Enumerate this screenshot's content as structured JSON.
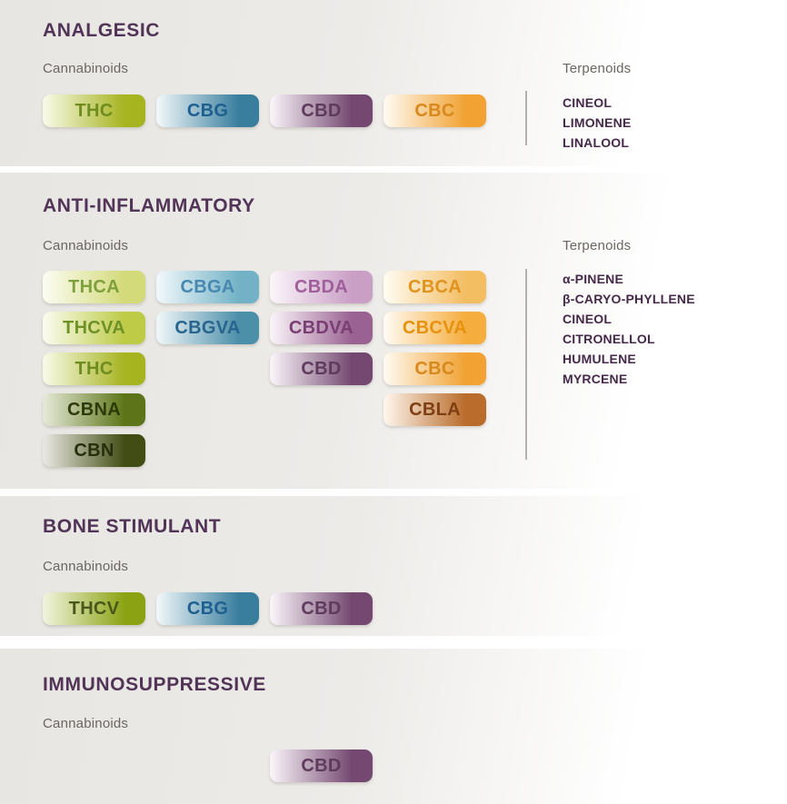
{
  "colors": {
    "heading": "#513457",
    "label": "#6b6661",
    "terp": "#46294a",
    "divider": "#b3b1ae",
    "bg_left": "#e8e6e2",
    "bg_mid": "#edebe8"
  },
  "palette": {
    "THC": {
      "start": "#f7f9e4",
      "end": "#a6b41f",
      "fg": "#6f8c1e"
    },
    "CBG": {
      "start": "#eef6f8",
      "end": "#3a7e9e",
      "fg": "#1d6090"
    },
    "CBD": {
      "start": "#f8f2f7",
      "end": "#744871",
      "fg": "#5e3a5c"
    },
    "CBC": {
      "start": "#fef9ef",
      "end": "#f1a233",
      "fg": "#d8891b"
    },
    "THCA": {
      "start": "#fbfcf0",
      "end": "#d3da7a",
      "fg": "#7fa03a"
    },
    "CBGA": {
      "start": "#eff7fa",
      "end": "#73b2c6",
      "fg": "#4788b0"
    },
    "CBDA": {
      "start": "#faf4f9",
      "end": "#c99fc6",
      "fg": "#a05f9a"
    },
    "CBCA": {
      "start": "#fffbf0",
      "end": "#f3bd62",
      "fg": "#e1941d"
    },
    "THCVA": {
      "start": "#fafbec",
      "end": "#bdcb47",
      "fg": "#6f9227"
    },
    "CBGVA": {
      "start": "#eef5f7",
      "end": "#4c8fa9",
      "fg": "#27648e"
    },
    "CBDVA": {
      "start": "#f9f2f8",
      "end": "#9a6292",
      "fg": "#7a3e74"
    },
    "CBCVA": {
      "start": "#fffaf0",
      "end": "#f5ad3e",
      "fg": "#e8920c"
    },
    "CBNA": {
      "start": "#e3e8d5",
      "end": "#5d7518",
      "fg": "#2d3a0a"
    },
    "CBLA": {
      "start": "#fdf4ea",
      "end": "#b96c2b",
      "fg": "#7f3f12"
    },
    "CBN": {
      "start": "#e7e6df",
      "end": "#414d14",
      "fg": "#262f0c"
    },
    "THCV": {
      "start": "#eff3da",
      "end": "#8ba313",
      "fg": "#47581a"
    }
  },
  "sections": [
    {
      "title": "ANALGESIC",
      "cannabinoids_label": "Cannabinoids",
      "terpenoids_label": "Terpenoids",
      "rows": [
        [
          "THC",
          "CBG",
          "CBD",
          "CBC"
        ]
      ],
      "terpenoids": [
        "CINEOL",
        "LIMONENE",
        "LINALOOL"
      ]
    },
    {
      "title": "ANTI-INFLAMMATORY",
      "cannabinoids_label": "Cannabinoids",
      "terpenoids_label": "Terpenoids",
      "rows": [
        [
          "THCA",
          "CBGA",
          "CBDA",
          "CBCA"
        ],
        [
          "THCVA",
          "CBGVA",
          "CBDVA",
          "CBCVA"
        ],
        [
          "THC",
          null,
          "CBD",
          "CBC"
        ],
        [
          "CBNA",
          null,
          null,
          "CBLA"
        ],
        [
          "CBN",
          null,
          null,
          null
        ]
      ],
      "terpenoids": [
        "α-PINENE",
        "β-CARYO-PHYLLENE",
        "CINEOL",
        "CITRONELLOL",
        "HUMULENE",
        "MYRCENE"
      ]
    },
    {
      "title": "BONE STIMULANT",
      "cannabinoids_label": "Cannabinoids",
      "rows": [
        [
          "THCV",
          "CBG",
          "CBD"
        ]
      ]
    },
    {
      "title": "IMMUNOSUPPRESSIVE",
      "cannabinoids_label": "Cannabinoids",
      "rows": [
        [
          null,
          null,
          "CBD"
        ]
      ]
    }
  ]
}
